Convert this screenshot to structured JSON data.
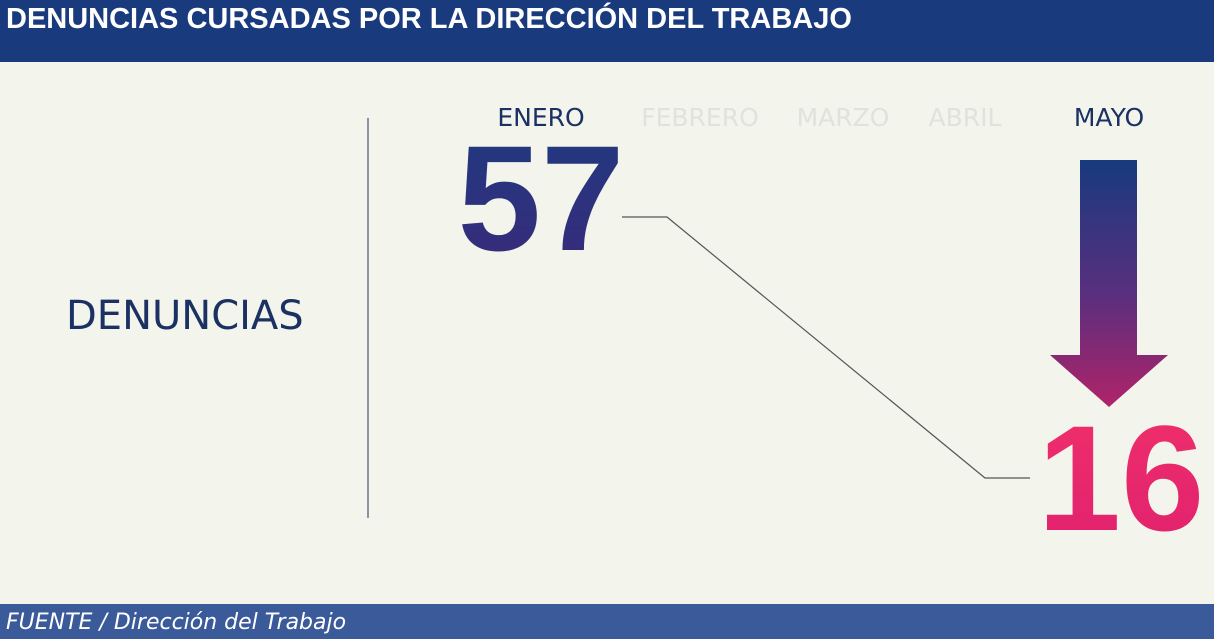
{
  "header": {
    "title": "DENUNCIAS CURSADAS POR LA DIRECCIÓN DEL TRABAJO"
  },
  "row_label": "DENUNCIAS",
  "months": [
    "ENERO",
    "FEBRERO",
    "MARZO",
    "ABRIL",
    "MAYO"
  ],
  "start": {
    "month": "ENERO",
    "value": 57
  },
  "end": {
    "month": "MAYO",
    "value": 16
  },
  "footer": {
    "source": "FUENTE / Dirección del Trabajo"
  }
}
